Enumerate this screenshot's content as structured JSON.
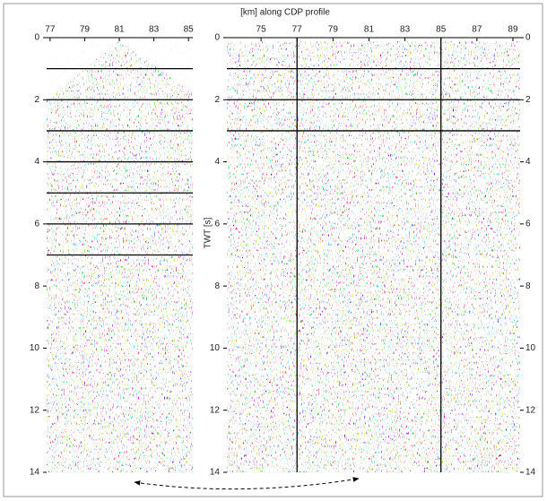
{
  "figure": {
    "title": "[km] along CDP profile",
    "y_label": "TWT [s]",
    "panels": [
      {
        "xlim": [
          76.8,
          85.25
        ],
        "xticks": [
          77,
          79,
          81,
          83,
          85
        ],
        "ylim": [
          0,
          14
        ],
        "yticks": [
          0,
          2,
          4,
          6,
          8,
          10,
          12,
          14
        ],
        "hlines": [
          1,
          2,
          3,
          4,
          5,
          6,
          7
        ],
        "vlines": []
      },
      {
        "xlim": [
          73.1,
          89.4
        ],
        "xticks": [
          75,
          77,
          79,
          81,
          83,
          85,
          87,
          89
        ],
        "ylim": [
          0,
          14
        ],
        "yticks": [
          0,
          2,
          4,
          6,
          8,
          10,
          12,
          14
        ],
        "hlines": [
          1,
          2,
          3
        ],
        "vlines": [
          77,
          85
        ]
      }
    ]
  }
}
